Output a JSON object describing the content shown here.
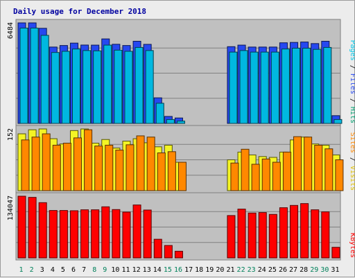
{
  "chart_data": {
    "type": "bar",
    "title": "Daily usage for December 2018",
    "categories": [
      "1",
      "2",
      "3",
      "4",
      "5",
      "6",
      "7",
      "8",
      "9",
      "10",
      "11",
      "12",
      "13",
      "14",
      "15",
      "16",
      "17",
      "18",
      "19",
      "20",
      "21",
      "22",
      "23",
      "24",
      "25",
      "26",
      "27",
      "28",
      "29",
      "30",
      "31"
    ],
    "weekend_days": [
      "1",
      "2",
      "8",
      "9",
      "15",
      "16",
      "22",
      "23",
      "29",
      "30"
    ],
    "panels": [
      {
        "name": "requests",
        "ymax_label": "6484",
        "ylim": [
          0,
          6484
        ],
        "series": [
          {
            "name": "Hits",
            "color": "#2648f0",
            "values": [
              6484,
              6484,
              6135,
              4925,
              5025,
              5180,
              5055,
              5050,
              5450,
              5105,
              5025,
              5300,
              5100,
              1650,
              450,
              350,
              0,
              0,
              0,
              0,
              4950,
              5050,
              4925,
              4925,
              4925,
              5200,
              5225,
              5250,
              5150,
              5300,
              500
            ]
          },
          {
            "name": "Files",
            "color": "#00b8e0",
            "values": [
              6150,
              6150,
              5680,
              4575,
              4650,
              4800,
              4700,
              4680,
              5050,
              4725,
              4650,
              4900,
              4700,
              1300,
              250,
              150,
              0,
              0,
              0,
              0,
              4600,
              4700,
              4600,
              4600,
              4600,
              4800,
              4850,
              4850,
              4775,
              4900,
              250
            ]
          },
          {
            "name": "Pages",
            "color": "#44e8ff",
            "values": [
              0,
              0,
              0,
              0,
              0,
              0,
              0,
              0,
              0,
              0,
              0,
              0,
              0,
              0,
              0,
              0,
              0,
              0,
              0,
              0,
              0,
              0,
              0,
              0,
              0,
              0,
              0,
              0,
              0,
              0,
              0
            ]
          }
        ],
        "legend": [
          "Pages",
          "Files",
          "Hits"
        ],
        "legend_colors": [
          "#00c8e8",
          "#2648f0",
          "#00a070"
        ]
      },
      {
        "name": "visitors",
        "ymax_label": "152",
        "ylim": [
          0,
          152
        ],
        "series": [
          {
            "name": "Visits",
            "color": "#f4f425",
            "values": [
              140,
              150,
              152,
              128,
              115,
              148,
              152,
              117,
              126,
              105,
              122,
              128,
              118,
              108,
              112,
              70,
              0,
              0,
              0,
              0,
              76,
              95,
              88,
              84,
              82,
              95,
              125,
              132,
              115,
              112,
              88
            ]
          },
          {
            "name": "Sites",
            "color": "#ff8800",
            "values": [
              125,
              132,
              140,
              112,
              117,
              130,
              150,
              110,
              112,
              100,
              113,
              135,
              132,
              93,
              96,
              70,
              0,
              0,
              0,
              0,
              68,
              102,
              65,
              78,
              70,
              95,
              133,
              132,
              112,
              103,
              76
            ]
          }
        ],
        "legend": [
          "Sites",
          "Visits"
        ],
        "legend_colors": [
          "#ff8800",
          "#e0c000"
        ]
      },
      {
        "name": "traffic",
        "ymax_label": "134047",
        "ylim": [
          0,
          134047
        ],
        "series": [
          {
            "name": "KBytes",
            "color": "#ff0000",
            "values": [
              134047,
              131500,
              120000,
              103000,
              103000,
              102500,
              104500,
              104500,
              111000,
              105000,
              99500,
              115000,
              104000,
              40500,
              27000,
              14500,
              0,
              0,
              0,
              0,
              92000,
              106000,
              97500,
              98500,
              94500,
              109000,
              114000,
              118000,
              104500,
              100000,
              23000
            ]
          }
        ],
        "legend": [
          "KBytes"
        ],
        "legend_colors": [
          "#ff0000"
        ]
      }
    ]
  }
}
